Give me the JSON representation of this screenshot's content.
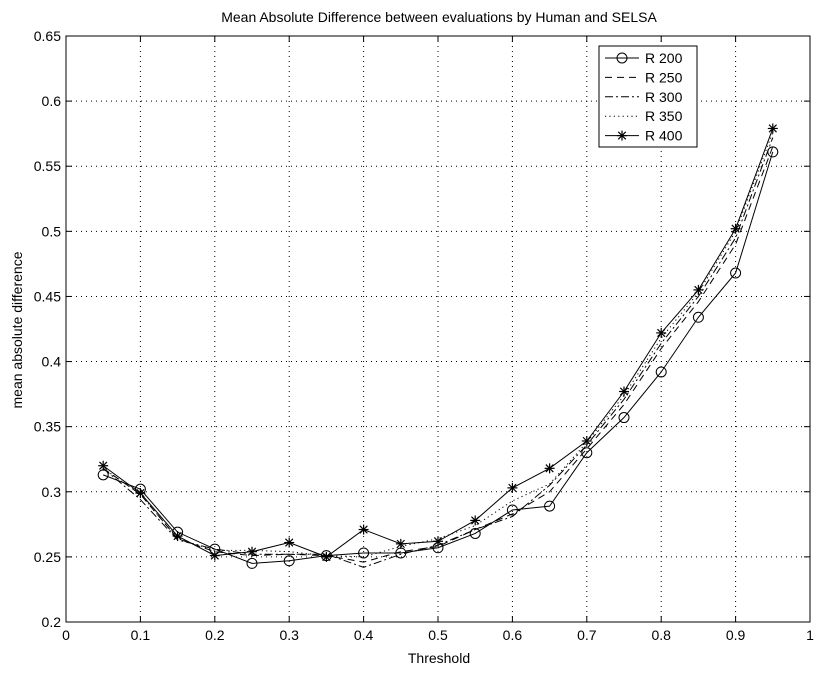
{
  "chart_data": {
    "type": "line",
    "title": "Mean Absolute Difference between evaluations by Human and SELSA",
    "xlabel": "Threshold",
    "ylabel": "mean absolute difference",
    "xlim": [
      0,
      1
    ],
    "ylim": [
      0.2,
      0.65
    ],
    "xticks": [
      0,
      0.1,
      0.2,
      0.3,
      0.4,
      0.5,
      0.6,
      0.7,
      0.8,
      0.9,
      1
    ],
    "xtick_labels": [
      "0",
      "0.1",
      "0.2",
      "0.3",
      "0.4",
      "0.5",
      "0.6",
      "0.7",
      "0.8",
      "0.9",
      "1"
    ],
    "yticks": [
      0.2,
      0.25,
      0.3,
      0.35,
      0.4,
      0.45,
      0.5,
      0.55,
      0.6,
      0.65
    ],
    "ytick_labels": [
      "0.2",
      "0.25",
      "0.3",
      "0.35",
      "0.4",
      "0.45",
      "0.5",
      "0.55",
      "0.6",
      "0.65"
    ],
    "grid": true,
    "legend_position": "top-right",
    "x": [
      0.05,
      0.1,
      0.15,
      0.2,
      0.25,
      0.3,
      0.35,
      0.4,
      0.45,
      0.5,
      0.55,
      0.6,
      0.65,
      0.7,
      0.75,
      0.8,
      0.85,
      0.9,
      0.95
    ],
    "series": [
      {
        "name": "R 200",
        "style": "solid",
        "marker": "circle",
        "values": [
          0.313,
          0.302,
          0.269,
          0.256,
          0.245,
          0.247,
          0.251,
          0.253,
          0.253,
          0.257,
          0.268,
          0.286,
          0.289,
          0.33,
          0.357,
          0.392,
          0.434,
          0.468,
          0.561
        ]
      },
      {
        "name": "R 250",
        "style": "dashed",
        "marker": "none",
        "values": [
          0.318,
          0.298,
          0.264,
          0.254,
          0.251,
          0.252,
          0.251,
          0.246,
          0.254,
          0.258,
          0.271,
          0.283,
          0.3,
          0.333,
          0.367,
          0.41,
          0.446,
          0.49,
          0.565
        ]
      },
      {
        "name": "R 300",
        "style": "dashdot",
        "marker": "none",
        "values": [
          0.318,
          0.294,
          0.263,
          0.256,
          0.252,
          0.252,
          0.252,
          0.242,
          0.252,
          0.259,
          0.271,
          0.281,
          0.305,
          0.336,
          0.371,
          0.414,
          0.45,
          0.495,
          0.572
        ]
      },
      {
        "name": "R 350",
        "style": "dotted",
        "marker": "none",
        "values": [
          0.318,
          0.298,
          0.264,
          0.255,
          0.255,
          0.254,
          0.251,
          0.25,
          0.258,
          0.264,
          0.274,
          0.293,
          0.306,
          0.338,
          0.374,
          0.418,
          0.453,
          0.5,
          0.576
        ]
      },
      {
        "name": "R 400",
        "style": "solid",
        "marker": "star",
        "values": [
          0.32,
          0.299,
          0.266,
          0.251,
          0.254,
          0.261,
          0.25,
          0.271,
          0.26,
          0.262,
          0.278,
          0.303,
          0.318,
          0.339,
          0.377,
          0.422,
          0.455,
          0.502,
          0.579
        ]
      }
    ]
  }
}
